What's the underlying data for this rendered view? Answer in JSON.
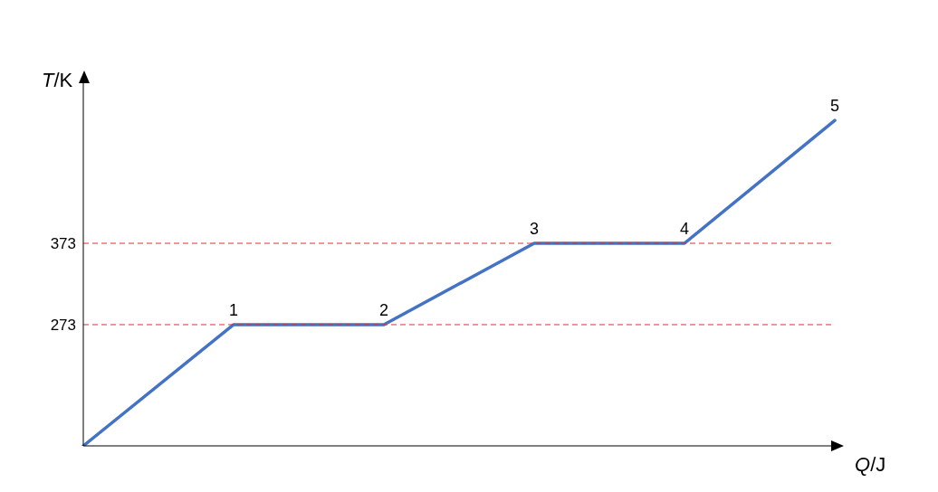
{
  "chart_data": {
    "type": "line",
    "xlabel": "Q/J",
    "ylabel": "T/K",
    "categories": [
      null,
      null,
      null,
      null,
      null,
      null
    ],
    "series": [
      {
        "color": "#4472c4",
        "values": [
          124,
          273,
          273,
          373,
          373,
          524
        ]
      }
    ],
    "ylim": [
      124,
      572
    ],
    "yticks": [
      273,
      373
    ],
    "annotations": [
      "1",
      "2",
      "3",
      "4",
      "5"
    ],
    "ref_lines": [
      {
        "axis": "y",
        "value": 273,
        "color": "#e03030",
        "line_style": "dashed"
      },
      {
        "axis": "y",
        "value": 373,
        "color": "#e03030",
        "line_style": "dashed"
      }
    ],
    "grid": false,
    "legend": false,
    "marker": "none",
    "line_style": "solid"
  }
}
